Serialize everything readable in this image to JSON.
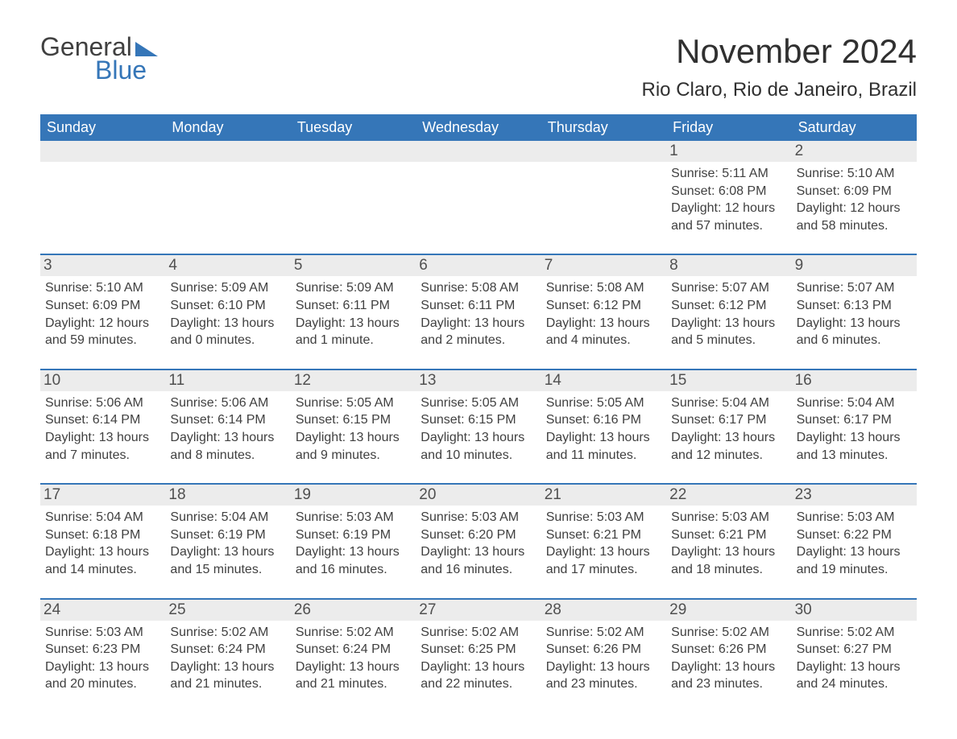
{
  "logo": {
    "text1": "General",
    "text2": "Blue"
  },
  "title": "November 2024",
  "location": "Rio Claro, Rio de Janeiro, Brazil",
  "colors": {
    "header_bg": "#3576b8",
    "header_text": "#ffffff",
    "daynum_bg": "#ececec",
    "body_text": "#404040",
    "page_bg": "#ffffff",
    "rule": "#3576b8"
  },
  "weekdays": [
    "Sunday",
    "Monday",
    "Tuesday",
    "Wednesday",
    "Thursday",
    "Friday",
    "Saturday"
  ],
  "weeks": [
    [
      null,
      null,
      null,
      null,
      null,
      {
        "n": "1",
        "sunrise": "Sunrise: 5:11 AM",
        "sunset": "Sunset: 6:08 PM",
        "d1": "Daylight: 12 hours",
        "d2": "and 57 minutes."
      },
      {
        "n": "2",
        "sunrise": "Sunrise: 5:10 AM",
        "sunset": "Sunset: 6:09 PM",
        "d1": "Daylight: 12 hours",
        "d2": "and 58 minutes."
      }
    ],
    [
      {
        "n": "3",
        "sunrise": "Sunrise: 5:10 AM",
        "sunset": "Sunset: 6:09 PM",
        "d1": "Daylight: 12 hours",
        "d2": "and 59 minutes."
      },
      {
        "n": "4",
        "sunrise": "Sunrise: 5:09 AM",
        "sunset": "Sunset: 6:10 PM",
        "d1": "Daylight: 13 hours",
        "d2": "and 0 minutes."
      },
      {
        "n": "5",
        "sunrise": "Sunrise: 5:09 AM",
        "sunset": "Sunset: 6:11 PM",
        "d1": "Daylight: 13 hours",
        "d2": "and 1 minute."
      },
      {
        "n": "6",
        "sunrise": "Sunrise: 5:08 AM",
        "sunset": "Sunset: 6:11 PM",
        "d1": "Daylight: 13 hours",
        "d2": "and 2 minutes."
      },
      {
        "n": "7",
        "sunrise": "Sunrise: 5:08 AM",
        "sunset": "Sunset: 6:12 PM",
        "d1": "Daylight: 13 hours",
        "d2": "and 4 minutes."
      },
      {
        "n": "8",
        "sunrise": "Sunrise: 5:07 AM",
        "sunset": "Sunset: 6:12 PM",
        "d1": "Daylight: 13 hours",
        "d2": "and 5 minutes."
      },
      {
        "n": "9",
        "sunrise": "Sunrise: 5:07 AM",
        "sunset": "Sunset: 6:13 PM",
        "d1": "Daylight: 13 hours",
        "d2": "and 6 minutes."
      }
    ],
    [
      {
        "n": "10",
        "sunrise": "Sunrise: 5:06 AM",
        "sunset": "Sunset: 6:14 PM",
        "d1": "Daylight: 13 hours",
        "d2": "and 7 minutes."
      },
      {
        "n": "11",
        "sunrise": "Sunrise: 5:06 AM",
        "sunset": "Sunset: 6:14 PM",
        "d1": "Daylight: 13 hours",
        "d2": "and 8 minutes."
      },
      {
        "n": "12",
        "sunrise": "Sunrise: 5:05 AM",
        "sunset": "Sunset: 6:15 PM",
        "d1": "Daylight: 13 hours",
        "d2": "and 9 minutes."
      },
      {
        "n": "13",
        "sunrise": "Sunrise: 5:05 AM",
        "sunset": "Sunset: 6:15 PM",
        "d1": "Daylight: 13 hours",
        "d2": "and 10 minutes."
      },
      {
        "n": "14",
        "sunrise": "Sunrise: 5:05 AM",
        "sunset": "Sunset: 6:16 PM",
        "d1": "Daylight: 13 hours",
        "d2": "and 11 minutes."
      },
      {
        "n": "15",
        "sunrise": "Sunrise: 5:04 AM",
        "sunset": "Sunset: 6:17 PM",
        "d1": "Daylight: 13 hours",
        "d2": "and 12 minutes."
      },
      {
        "n": "16",
        "sunrise": "Sunrise: 5:04 AM",
        "sunset": "Sunset: 6:17 PM",
        "d1": "Daylight: 13 hours",
        "d2": "and 13 minutes."
      }
    ],
    [
      {
        "n": "17",
        "sunrise": "Sunrise: 5:04 AM",
        "sunset": "Sunset: 6:18 PM",
        "d1": "Daylight: 13 hours",
        "d2": "and 14 minutes."
      },
      {
        "n": "18",
        "sunrise": "Sunrise: 5:04 AM",
        "sunset": "Sunset: 6:19 PM",
        "d1": "Daylight: 13 hours",
        "d2": "and 15 minutes."
      },
      {
        "n": "19",
        "sunrise": "Sunrise: 5:03 AM",
        "sunset": "Sunset: 6:19 PM",
        "d1": "Daylight: 13 hours",
        "d2": "and 16 minutes."
      },
      {
        "n": "20",
        "sunrise": "Sunrise: 5:03 AM",
        "sunset": "Sunset: 6:20 PM",
        "d1": "Daylight: 13 hours",
        "d2": "and 16 minutes."
      },
      {
        "n": "21",
        "sunrise": "Sunrise: 5:03 AM",
        "sunset": "Sunset: 6:21 PM",
        "d1": "Daylight: 13 hours",
        "d2": "and 17 minutes."
      },
      {
        "n": "22",
        "sunrise": "Sunrise: 5:03 AM",
        "sunset": "Sunset: 6:21 PM",
        "d1": "Daylight: 13 hours",
        "d2": "and 18 minutes."
      },
      {
        "n": "23",
        "sunrise": "Sunrise: 5:03 AM",
        "sunset": "Sunset: 6:22 PM",
        "d1": "Daylight: 13 hours",
        "d2": "and 19 minutes."
      }
    ],
    [
      {
        "n": "24",
        "sunrise": "Sunrise: 5:03 AM",
        "sunset": "Sunset: 6:23 PM",
        "d1": "Daylight: 13 hours",
        "d2": "and 20 minutes."
      },
      {
        "n": "25",
        "sunrise": "Sunrise: 5:02 AM",
        "sunset": "Sunset: 6:24 PM",
        "d1": "Daylight: 13 hours",
        "d2": "and 21 minutes."
      },
      {
        "n": "26",
        "sunrise": "Sunrise: 5:02 AM",
        "sunset": "Sunset: 6:24 PM",
        "d1": "Daylight: 13 hours",
        "d2": "and 21 minutes."
      },
      {
        "n": "27",
        "sunrise": "Sunrise: 5:02 AM",
        "sunset": "Sunset: 6:25 PM",
        "d1": "Daylight: 13 hours",
        "d2": "and 22 minutes."
      },
      {
        "n": "28",
        "sunrise": "Sunrise: 5:02 AM",
        "sunset": "Sunset: 6:26 PM",
        "d1": "Daylight: 13 hours",
        "d2": "and 23 minutes."
      },
      {
        "n": "29",
        "sunrise": "Sunrise: 5:02 AM",
        "sunset": "Sunset: 6:26 PM",
        "d1": "Daylight: 13 hours",
        "d2": "and 23 minutes."
      },
      {
        "n": "30",
        "sunrise": "Sunrise: 5:02 AM",
        "sunset": "Sunset: 6:27 PM",
        "d1": "Daylight: 13 hours",
        "d2": "and 24 minutes."
      }
    ]
  ]
}
